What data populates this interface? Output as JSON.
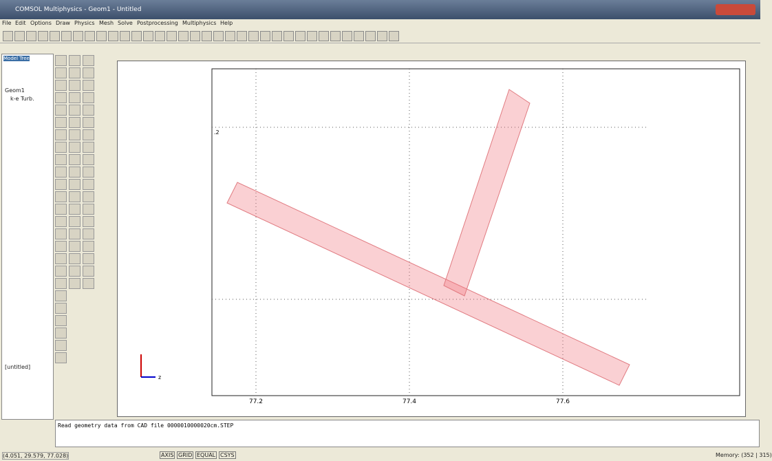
{
  "window": {
    "title": "COMSOL Multiphysics - Geom1 - Untitled"
  },
  "menu": [
    "File",
    "Edit",
    "Options",
    "Draw",
    "Physics",
    "Mesh",
    "Solve",
    "Postprocessing",
    "Multiphysics",
    "Help"
  ],
  "tree": {
    "tab": "Model Tree",
    "root": "Geom1",
    "child": "k-e Turb."
  },
  "model_name": "[untitled]",
  "plot": {
    "x_ticks": [
      "77.2",
      "77.4",
      "77.6"
    ],
    "y_tick": ".2",
    "axis_label": "z"
  },
  "log": "Read geometry data from CAD file 0000010000020cm.STEP",
  "status": {
    "coords": "(4.051, 29.579, 77.028)",
    "buttons": [
      "AXIS",
      "GRID",
      "EQUAL",
      "CSYS"
    ],
    "memory": "Memory: (352 | 315)"
  }
}
